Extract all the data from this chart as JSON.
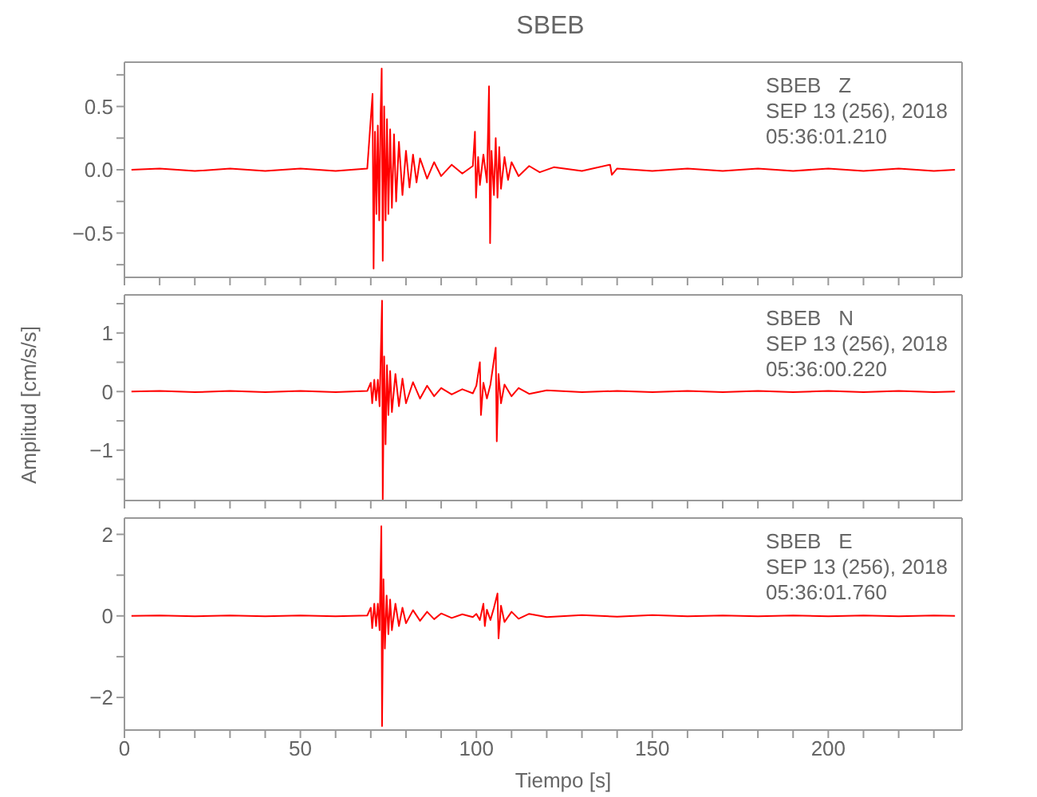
{
  "chart_data": [
    {
      "type": "line",
      "title": "SBEB",
      "annotations": [
        "SBEB   Z",
        "SEP 13 (256), 2018",
        "05:36:01.210"
      ],
      "tick_labels": "y",
      "x": [
        2,
        10,
        20,
        30,
        40,
        50,
        60,
        69,
        70.5,
        70.8,
        71.2,
        71.6,
        72,
        72.4,
        72.8,
        73.1,
        73.4,
        73.8,
        74.2,
        74.6,
        75,
        75.5,
        76,
        76.6,
        77.2,
        78,
        79,
        80,
        81,
        82,
        83,
        84,
        86,
        88,
        90,
        93,
        96,
        99,
        99.6,
        99.9,
        100.5,
        101,
        102,
        103,
        103.6,
        103.9,
        104.3,
        105,
        105.5,
        106,
        106.5,
        107,
        108,
        109,
        110,
        112,
        115,
        118,
        122,
        130,
        138,
        138.5,
        140,
        150,
        160,
        170,
        180,
        190,
        200,
        210,
        220,
        230,
        236
      ],
      "series": [
        {
          "color": "#ff0000",
          "values": [
            0,
            0.01,
            -0.01,
            0.01,
            -0.01,
            0.01,
            -0.01,
            0.01,
            0.6,
            -0.78,
            0.3,
            -0.35,
            0.35,
            -0.4,
            0.45,
            0.8,
            -0.72,
            0.5,
            -0.4,
            0.4,
            -0.35,
            0.32,
            -0.3,
            0.28,
            -0.25,
            0.22,
            -0.2,
            0.15,
            -0.14,
            0.12,
            -0.1,
            0.09,
            -0.07,
            0.06,
            -0.05,
            0.04,
            -0.03,
            0.03,
            0.3,
            -0.22,
            0.1,
            -0.12,
            0.12,
            -0.1,
            0.66,
            -0.58,
            0.15,
            -0.2,
            0.25,
            -0.22,
            0.18,
            -0.15,
            0.1,
            -0.08,
            0.06,
            -0.05,
            0.03,
            -0.02,
            0.02,
            -0.01,
            0.04,
            -0.04,
            0.01,
            -0.01,
            0.01,
            -0.01,
            0.01,
            -0.01,
            0.01,
            -0.01,
            0.01,
            -0.01,
            0
          ]
        }
      ],
      "xlim": [
        0,
        238
      ],
      "ylim": [
        -0.85,
        0.85
      ],
      "xticks": [
        0,
        {
          "value": 10,
          "label": null
        },
        {
          "value": 20,
          "label": null
        },
        {
          "value": 30,
          "label": null
        },
        {
          "value": 40,
          "label": null
        },
        50,
        {
          "value": 60,
          "label": null
        },
        {
          "value": 70,
          "label": null
        },
        {
          "value": 80,
          "label": null
        },
        {
          "value": 90,
          "label": null
        },
        100,
        {
          "value": 110,
          "label": null
        },
        {
          "value": 120,
          "label": null
        },
        {
          "value": 130,
          "label": null
        },
        {
          "value": 140,
          "label": null
        },
        150,
        {
          "value": 160,
          "label": null
        },
        {
          "value": 170,
          "label": null
        },
        {
          "value": 180,
          "label": null
        },
        {
          "value": 190,
          "label": null
        },
        200,
        {
          "value": 210,
          "label": null
        },
        {
          "value": 220,
          "label": null
        },
        {
          "value": 230,
          "label": null
        }
      ],
      "yticks": [
        {
          "value": -0.75,
          "label": null
        },
        {
          "value": -0.5,
          "label": "−0.5"
        },
        {
          "value": -0.25,
          "label": null
        },
        {
          "value": 0,
          "label": "0.0"
        },
        {
          "value": 0.25,
          "label": null
        },
        0.5,
        {
          "value": 0.75,
          "label": null
        }
      ]
    },
    {
      "type": "line",
      "ylabel": "Amplitud [cm/s/s]",
      "annotations": [
        "SBEB   N",
        "SEP 13 (256), 2018",
        "05:36:00.220"
      ],
      "tick_labels": "y",
      "x": [
        2,
        10,
        20,
        30,
        40,
        50,
        60,
        69,
        70,
        70.4,
        71,
        71.5,
        72,
        72.5,
        73.2,
        73.4,
        73.8,
        74.2,
        74.6,
        75,
        75.5,
        76,
        77,
        78,
        79,
        80,
        82,
        84,
        86,
        88,
        90,
        93,
        96,
        99,
        100,
        101,
        101.3,
        102,
        103,
        104,
        105.5,
        105.8,
        106.3,
        107,
        108,
        110,
        112,
        115,
        120,
        130,
        140,
        150,
        160,
        170,
        180,
        190,
        200,
        210,
        220,
        230,
        236
      ],
      "series": [
        {
          "color": "#ff0000",
          "values": [
            0,
            0.01,
            -0.01,
            0.01,
            -0.01,
            0.01,
            -0.01,
            0.01,
            0.15,
            -0.2,
            0.2,
            -0.15,
            0.2,
            -0.25,
            1.55,
            -1.85,
            0.6,
            -0.9,
            0.45,
            -0.4,
            0.35,
            -0.35,
            0.3,
            -0.25,
            0.22,
            -0.2,
            0.16,
            -0.12,
            0.1,
            -0.08,
            0.06,
            -0.05,
            0.04,
            -0.03,
            0.1,
            0.5,
            -0.4,
            0.15,
            -0.12,
            0.12,
            0.75,
            -0.85,
            0.3,
            -0.2,
            0.12,
            -0.08,
            0.06,
            -0.04,
            0.02,
            -0.01,
            0.01,
            -0.01,
            0.01,
            -0.01,
            0.01,
            -0.01,
            0.01,
            -0.01,
            0.01,
            -0.01,
            0
          ]
        }
      ],
      "xlim": [
        0,
        238
      ],
      "ylim": [
        -1.86,
        1.65
      ],
      "xticks": [
        0,
        {
          "value": 10,
          "label": null
        },
        {
          "value": 20,
          "label": null
        },
        {
          "value": 30,
          "label": null
        },
        {
          "value": 40,
          "label": null
        },
        50,
        {
          "value": 60,
          "label": null
        },
        {
          "value": 70,
          "label": null
        },
        {
          "value": 80,
          "label": null
        },
        {
          "value": 90,
          "label": null
        },
        100,
        {
          "value": 110,
          "label": null
        },
        {
          "value": 120,
          "label": null
        },
        {
          "value": 130,
          "label": null
        },
        {
          "value": 140,
          "label": null
        },
        150,
        {
          "value": 160,
          "label": null
        },
        {
          "value": 170,
          "label": null
        },
        {
          "value": 180,
          "label": null
        },
        {
          "value": 190,
          "label": null
        },
        200,
        {
          "value": 210,
          "label": null
        },
        {
          "value": 220,
          "label": null
        },
        {
          "value": 230,
          "label": null
        }
      ],
      "yticks": [
        {
          "value": -1.5,
          "label": null
        },
        {
          "value": -1,
          "label": "−1"
        },
        {
          "value": -0.5,
          "label": null
        },
        0,
        {
          "value": 0.5,
          "label": null
        },
        1,
        {
          "value": 1.5,
          "label": null
        }
      ]
    },
    {
      "type": "line",
      "xlabel": "Tiempo [s]",
      "annotations": [
        "SBEB   E",
        "SEP 13 (256), 2018",
        "05:36:01.760"
      ],
      "x": [
        2,
        10,
        20,
        30,
        40,
        50,
        60,
        69,
        70,
        70.4,
        71,
        71.5,
        72,
        72.5,
        73,
        73.2,
        73.6,
        74,
        74.5,
        75,
        75.5,
        76,
        77,
        78,
        79,
        80,
        82,
        84,
        86,
        88,
        90,
        93,
        96,
        99,
        100,
        101,
        102,
        102.4,
        103,
        104,
        105,
        106,
        106.3,
        107,
        108,
        110,
        112,
        115,
        120,
        130,
        140,
        150,
        160,
        170,
        180,
        190,
        200,
        210,
        220,
        230,
        236
      ],
      "series": [
        {
          "color": "#ff0000",
          "values": [
            0,
            0.01,
            -0.01,
            0.01,
            -0.01,
            0.01,
            -0.01,
            0.01,
            0.2,
            -0.3,
            0.3,
            -0.25,
            0.3,
            -0.35,
            2.2,
            -2.7,
            0.9,
            -0.8,
            0.5,
            -0.45,
            0.4,
            -0.35,
            0.3,
            -0.25,
            0.2,
            -0.18,
            0.14,
            -0.12,
            0.1,
            -0.08,
            0.06,
            -0.05,
            0.04,
            -0.03,
            0.05,
            -0.1,
            0.3,
            -0.25,
            0.15,
            -0.1,
            0.2,
            0.55,
            -0.55,
            0.25,
            -0.15,
            0.1,
            -0.07,
            0.05,
            -0.03,
            0.02,
            -0.02,
            0.02,
            -0.01,
            0.01,
            -0.01,
            0.01,
            -0.01,
            0.01,
            -0.01,
            0.01,
            0
          ]
        }
      ],
      "xlim": [
        0,
        238
      ],
      "ylim": [
        -2.8,
        2.4
      ],
      "xticks": [
        0,
        {
          "value": 10,
          "label": null
        },
        {
          "value": 20,
          "label": null
        },
        {
          "value": 30,
          "label": null
        },
        {
          "value": 40,
          "label": null
        },
        50,
        {
          "value": 60,
          "label": null
        },
        {
          "value": 70,
          "label": null
        },
        {
          "value": 80,
          "label": null
        },
        {
          "value": 90,
          "label": null
        },
        100,
        {
          "value": 110,
          "label": null
        },
        {
          "value": 120,
          "label": null
        },
        {
          "value": 130,
          "label": null
        },
        {
          "value": 140,
          "label": null
        },
        150,
        {
          "value": 160,
          "label": null
        },
        {
          "value": 170,
          "label": null
        },
        {
          "value": 180,
          "label": null
        },
        {
          "value": 190,
          "label": null
        },
        200,
        {
          "value": 210,
          "label": null
        },
        {
          "value": 220,
          "label": null
        },
        {
          "value": 230,
          "label": null
        }
      ],
      "yticks": [
        {
          "value": -2,
          "label": "−2"
        },
        {
          "value": -1,
          "label": null
        },
        0,
        {
          "value": 1,
          "label": null
        },
        2
      ]
    }
  ]
}
